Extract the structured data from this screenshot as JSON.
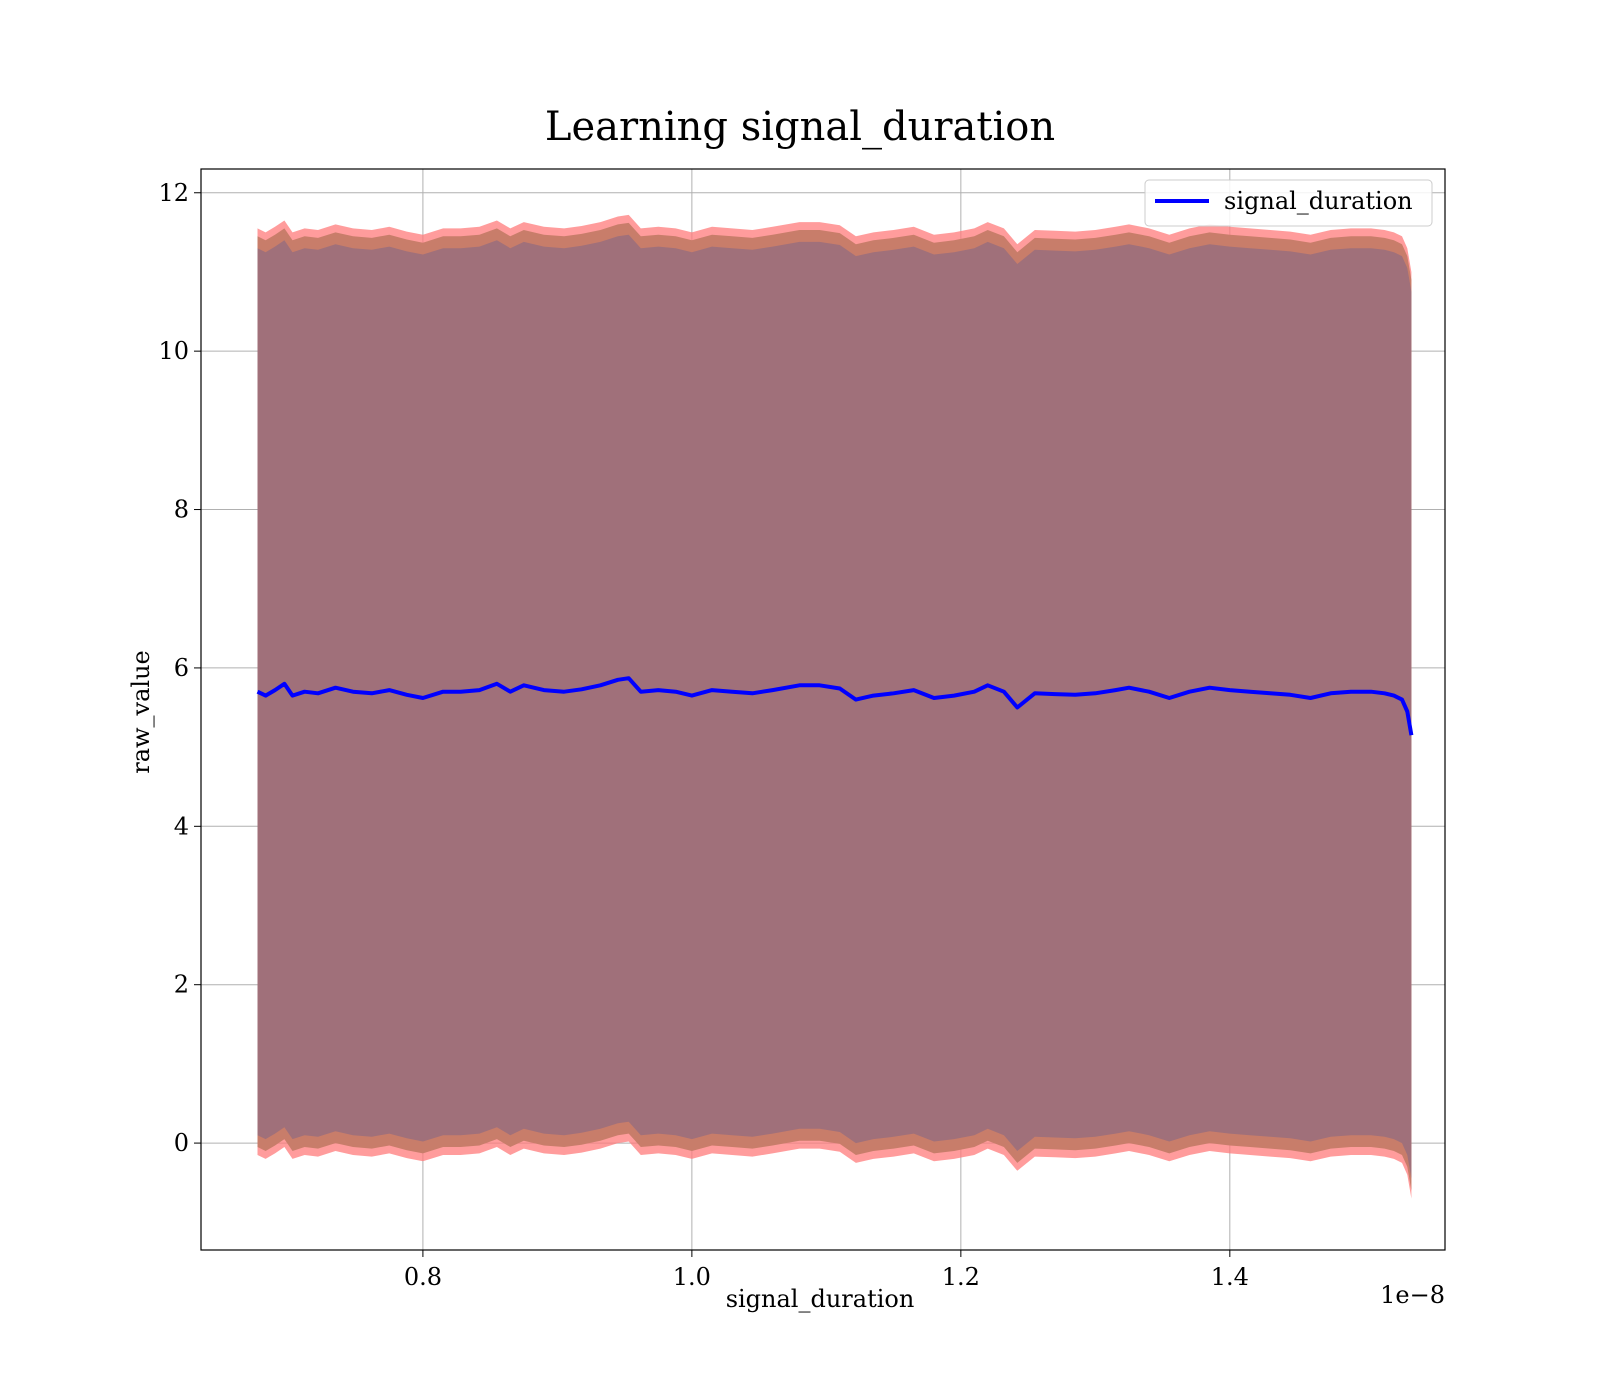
{
  "chart_data": {
    "type": "line",
    "title": "Learning signal_duration",
    "xlabel": "signal_duration",
    "ylabel": "raw_value",
    "x_offset_text": "1e−8",
    "xlim": [
      0.635,
      1.56
    ],
    "ylim": [
      -1.35,
      12.3
    ],
    "x_ticks": [
      0.8,
      1.0,
      1.2,
      1.4
    ],
    "x_tick_labels": [
      "0.8",
      "1.0",
      "1.2",
      "1.4"
    ],
    "y_ticks": [
      0,
      2,
      4,
      6,
      8,
      10,
      12
    ],
    "y_tick_labels": [
      "0",
      "2",
      "4",
      "6",
      "8",
      "10",
      "12"
    ],
    "grid": true,
    "legend_position": "top-right",
    "colors": {
      "line": "#0000ff",
      "band_outer": "#ff7b7b",
      "band_mid": "#c87d6a",
      "band_inner": "#a0707a"
    },
    "series": [
      {
        "name": "signal_duration",
        "x": [
          0.677,
          0.683,
          0.69,
          0.697,
          0.703,
          0.712,
          0.722,
          0.735,
          0.748,
          0.762,
          0.775,
          0.788,
          0.8,
          0.815,
          0.828,
          0.842,
          0.855,
          0.865,
          0.875,
          0.89,
          0.905,
          0.918,
          0.932,
          0.945,
          0.953,
          0.962,
          0.975,
          0.988,
          1.0,
          1.015,
          1.03,
          1.045,
          1.06,
          1.08,
          1.095,
          1.11,
          1.122,
          1.135,
          1.15,
          1.165,
          1.18,
          1.195,
          1.21,
          1.22,
          1.232,
          1.242,
          1.255,
          1.27,
          1.285,
          1.3,
          1.315,
          1.325,
          1.34,
          1.355,
          1.37,
          1.385,
          1.4,
          1.415,
          1.43,
          1.445,
          1.46,
          1.475,
          1.49,
          1.505,
          1.515,
          1.522,
          1.528,
          1.532,
          1.535
        ],
        "values": [
          5.7,
          5.65,
          5.72,
          5.8,
          5.65,
          5.7,
          5.68,
          5.75,
          5.7,
          5.68,
          5.72,
          5.66,
          5.62,
          5.7,
          5.7,
          5.72,
          5.8,
          5.7,
          5.78,
          5.72,
          5.7,
          5.73,
          5.78,
          5.85,
          5.87,
          5.7,
          5.72,
          5.7,
          5.65,
          5.72,
          5.7,
          5.68,
          5.72,
          5.78,
          5.78,
          5.74,
          5.6,
          5.65,
          5.68,
          5.72,
          5.62,
          5.65,
          5.7,
          5.78,
          5.7,
          5.5,
          5.68,
          5.67,
          5.66,
          5.68,
          5.72,
          5.75,
          5.7,
          5.62,
          5.7,
          5.75,
          5.72,
          5.7,
          5.68,
          5.66,
          5.62,
          5.68,
          5.7,
          5.7,
          5.68,
          5.65,
          5.6,
          5.45,
          5.15
        ]
      }
    ],
    "band_halfwidths": {
      "outer": 5.85,
      "mid": 5.75,
      "inner": 5.6
    }
  }
}
